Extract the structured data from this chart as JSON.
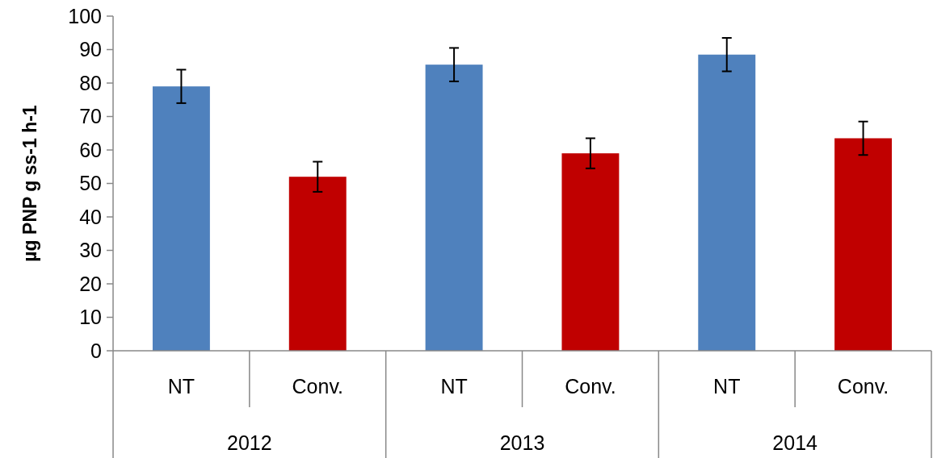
{
  "chart_data": {
    "type": "bar",
    "ylabel": "µg PNP g ss-1 h-1",
    "categories": [
      "NT",
      "Conv.",
      "NT",
      "Conv.",
      "NT",
      "Conv."
    ],
    "values": [
      79,
      52,
      85.5,
      59,
      88.5,
      63.5
    ],
    "colors": [
      "#4f81bd",
      "#c00000",
      "#4f81bd",
      "#c00000",
      "#4f81bd",
      "#c00000"
    ],
    "errors": [
      5,
      4.5,
      5,
      4.5,
      5,
      5
    ],
    "ylim": [
      0,
      100
    ],
    "yticks": [
      0,
      10,
      20,
      30,
      40,
      50,
      60,
      70,
      80,
      90,
      100
    ],
    "annotations": [
      "2012",
      "2013",
      "2014"
    ]
  }
}
